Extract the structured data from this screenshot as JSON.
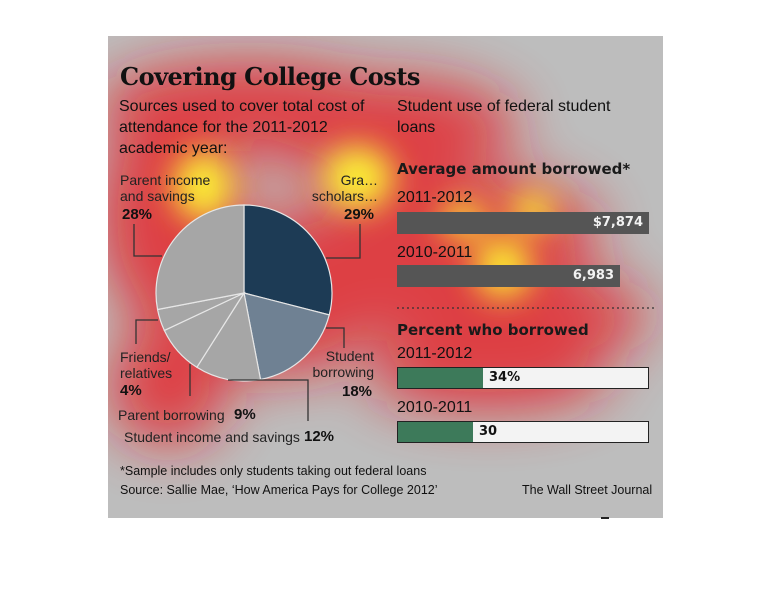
{
  "title": "Covering College Costs",
  "pie_subtitle": "Sources used to cover total cost of attendance for the 2011-2012 academic year:",
  "loans_subtitle": "Student use of federal student loans",
  "colors": {
    "panel": "#bdbdbd",
    "slice_grants": "#1d3b55",
    "slice_student_borrowing": "#6f8193",
    "slice_light": "#a6a6a6",
    "bar_amount": "#555555",
    "bar_percent": "#3d7a5a",
    "heat_red": "#e8191b",
    "heat_yellow": "#ffff33"
  },
  "chart_data": [
    {
      "type": "pie",
      "slices": [
        {
          "label": "Grants/scholarships",
          "label_visible": "Gra… scholars…",
          "value": 29,
          "value_label": "29%"
        },
        {
          "label": "Student borrowing",
          "value": 18,
          "value_label": "18%"
        },
        {
          "label": "Student income and savings",
          "value": 12,
          "value_label": "12%"
        },
        {
          "label": "Parent borrowing",
          "value": 9,
          "value_label": "9%"
        },
        {
          "label": "Friends/ relatives",
          "value": 4,
          "value_label": "4%"
        },
        {
          "label": "Parent income and savings",
          "value": 28,
          "value_label": "28%"
        }
      ]
    },
    {
      "type": "bar",
      "orientation": "horizontal",
      "title": "Average amount borrowed*",
      "categories": [
        "2011-2012",
        "2010-2011"
      ],
      "values": [
        7874,
        6983
      ],
      "value_labels": [
        "$7,874",
        "6,983"
      ],
      "xlim": [
        0,
        7874
      ]
    },
    {
      "type": "bar",
      "orientation": "horizontal",
      "title": "Percent who borrowed",
      "categories": [
        "2011-2012",
        "2010-2011"
      ],
      "values": [
        34,
        30
      ],
      "value_labels": [
        "34%",
        "30"
      ],
      "xlim": [
        0,
        100
      ]
    }
  ],
  "footer": {
    "note": "*Sample includes only students taking out federal loans",
    "source": "Source: Sallie Mae, ‘How America Pays for College 2012’",
    "credit": "The Wall Street Journal"
  }
}
